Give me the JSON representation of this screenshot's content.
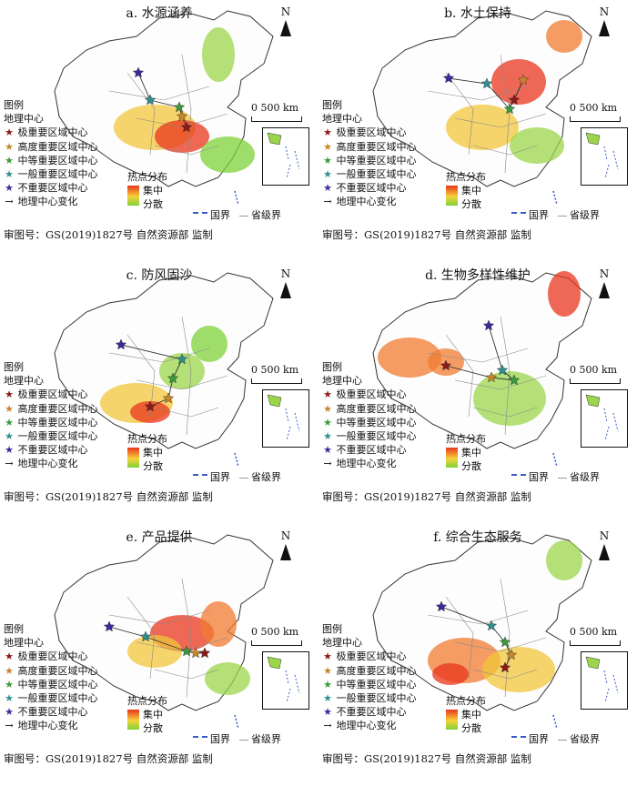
{
  "panels": [
    {
      "id": "a",
      "title": "a. 水源涵养"
    },
    {
      "id": "b",
      "title": "b. 水土保持"
    },
    {
      "id": "c",
      "title": "c. 防风固沙"
    },
    {
      "id": "d",
      "title": "d. 生物多样性维护"
    },
    {
      "id": "e",
      "title": "e. 产品提供"
    },
    {
      "id": "f",
      "title": "f. 综合生态服务"
    }
  ],
  "common": {
    "north": "N",
    "scale_label": "0   500 km",
    "legend_title": "图例",
    "legend_subtitle": "地理中心",
    "centers": [
      {
        "label": "极重要区域中心",
        "color": "#8b1a1a"
      },
      {
        "label": "高度重要区域中心",
        "color": "#c8862a"
      },
      {
        "label": "中等重要区域中心",
        "color": "#3c9a3c"
      },
      {
        "label": "一般重要区域中心",
        "color": "#2f8f8f"
      },
      {
        "label": "不重要区域中心",
        "color": "#3a2a9a"
      }
    ],
    "change_label": "地理中心变化",
    "hotspot_title": "热点分布",
    "hot_high": "集中",
    "hot_low": "分散",
    "national_border": "国界",
    "provincial_border": "省级界",
    "approval": "审图号：GS(2019)1827号 自然资源部 监制"
  }
}
